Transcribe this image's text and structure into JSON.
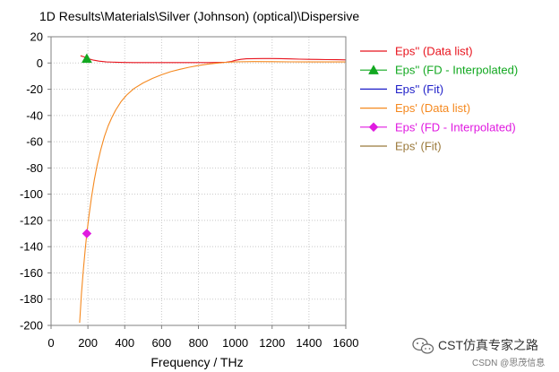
{
  "chart_data": {
    "type": "line",
    "title": "1D Results\\Materials\\Silver (Johnson) (optical)\\Dispersive",
    "xlabel": "Frequency / THz",
    "ylabel": "",
    "xlim": [
      0,
      1600
    ],
    "ylim": [
      -200,
      20
    ],
    "x_ticks": [
      0,
      200,
      400,
      600,
      800,
      1000,
      1200,
      1400,
      1600
    ],
    "y_ticks": [
      20,
      0,
      -20,
      -40,
      -60,
      -80,
      -100,
      -120,
      -140,
      -160,
      -180,
      -200
    ],
    "grid": true,
    "legend_position": "right",
    "series": [
      {
        "name": "Eps'' (Data list)",
        "color": "#e8141e",
        "marker": "none",
        "points": [
          [
            160,
            5.5
          ],
          [
            180,
            4.6
          ],
          [
            200,
            3.4
          ],
          [
            230,
            2.2
          ],
          [
            260,
            1.4
          ],
          [
            300,
            0.8
          ],
          [
            350,
            0.6
          ],
          [
            400,
            0.4
          ],
          [
            450,
            0.3
          ],
          [
            500,
            0.3
          ],
          [
            550,
            0.3
          ],
          [
            600,
            0.3
          ],
          [
            650,
            0.3
          ],
          [
            700,
            0.3
          ],
          [
            750,
            0.3
          ],
          [
            800,
            0.3
          ],
          [
            850,
            0.3
          ],
          [
            900,
            0.4
          ],
          [
            950,
            0.6
          ],
          [
            980,
            1.2
          ],
          [
            1000,
            2.0
          ],
          [
            1030,
            2.8
          ],
          [
            1060,
            3.2
          ],
          [
            1100,
            3.3
          ],
          [
            1150,
            3.4
          ],
          [
            1200,
            3.4
          ],
          [
            1250,
            3.3
          ],
          [
            1300,
            3.1
          ],
          [
            1350,
            2.9
          ],
          [
            1400,
            2.8
          ],
          [
            1450,
            2.7
          ],
          [
            1500,
            2.6
          ],
          [
            1550,
            2.5
          ],
          [
            1600,
            2.4
          ]
        ]
      },
      {
        "name": "Eps'' (FD - Interpolated)",
        "color": "#12a820",
        "marker": "triangle",
        "points": [
          [
            194,
            3.3
          ]
        ]
      },
      {
        "name": "Eps'' (Fit)",
        "color": "#1e1ec8",
        "marker": "none",
        "points": []
      },
      {
        "name": "Eps' (Data list)",
        "color": "#f5891f",
        "marker": "none",
        "points": [
          [
            155,
            -198
          ],
          [
            165,
            -176
          ],
          [
            175,
            -158
          ],
          [
            185,
            -143
          ],
          [
            194,
            -130
          ],
          [
            205,
            -117
          ],
          [
            220,
            -102
          ],
          [
            235,
            -89
          ],
          [
            250,
            -78
          ],
          [
            270,
            -66
          ],
          [
            290,
            -56
          ],
          [
            310,
            -48
          ],
          [
            330,
            -41.5
          ],
          [
            350,
            -36
          ],
          [
            380,
            -29.5
          ],
          [
            410,
            -24.5
          ],
          [
            450,
            -19.5
          ],
          [
            500,
            -15.2
          ],
          [
            550,
            -11.8
          ],
          [
            600,
            -9
          ],
          [
            650,
            -6.6
          ],
          [
            700,
            -4.8
          ],
          [
            750,
            -3.2
          ],
          [
            800,
            -1.9
          ],
          [
            850,
            -0.9
          ],
          [
            900,
            -0.1
          ],
          [
            950,
            0.5
          ],
          [
            1000,
            0.9
          ],
          [
            1100,
            1.1
          ],
          [
            1200,
            1.0
          ],
          [
            1300,
            0.9
          ],
          [
            1400,
            0.8
          ],
          [
            1500,
            0.8
          ],
          [
            1600,
            0.8
          ]
        ]
      },
      {
        "name": "Eps' (FD - Interpolated)",
        "color": "#e01ae0",
        "marker": "diamond",
        "points": [
          [
            194,
            -130
          ]
        ]
      },
      {
        "name": "Eps' (Fit)",
        "color": "#9b7a3c",
        "marker": "none",
        "points": []
      }
    ]
  },
  "watermark": {
    "main": "CST仿真专家之路",
    "sub": "CSDN @思茂信息",
    "icon": "wechat-icon"
  }
}
